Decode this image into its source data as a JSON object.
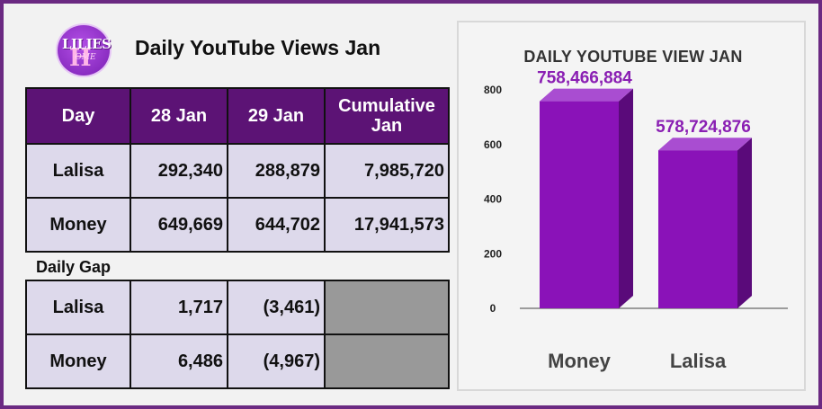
{
  "logo": {
    "text_top": "LILIES",
    "text_letter": "H",
    "text_bottom": "OME"
  },
  "title": "Daily YouTube Views Jan",
  "table": {
    "headers": [
      "Day",
      "28 Jan",
      "29 Jan",
      "Cumulative Jan"
    ],
    "rows": [
      {
        "day": "Lalisa",
        "d28": "292,340",
        "d29": "288,879",
        "cum": "7,985,720"
      },
      {
        "day": "Money",
        "d28": "649,669",
        "d29": "644,702",
        "cum": "17,941,573"
      }
    ]
  },
  "gap": {
    "label": "Daily Gap",
    "rows": [
      {
        "day": "Lalisa",
        "d28": "1,717",
        "d29": "(3,461)"
      },
      {
        "day": "Money",
        "d28": "6,486",
        "d29": "(4,967)"
      }
    ]
  },
  "colors": {
    "header_bg": "#5c1375",
    "cell_bg": "#ddd9eb",
    "bar_front": "#8a12b8",
    "bar_side": "#5a0a7a",
    "bar_top": "#a94dd1",
    "label": "#8a1fb3"
  },
  "chart_data": {
    "type": "bar",
    "title": "DAILY YOUTUBE VIEW JAN",
    "categories": [
      "Money",
      "Lalisa"
    ],
    "values": [
      758466884,
      578724876
    ],
    "value_labels": [
      "758,466,884",
      "578,724,876"
    ],
    "yticks": [
      0,
      200,
      400,
      600,
      800
    ],
    "ytick_labels": [
      "0",
      "200",
      "400",
      "600",
      "800"
    ],
    "ylim": [
      0,
      800
    ],
    "grid": false,
    "legend": "none"
  }
}
